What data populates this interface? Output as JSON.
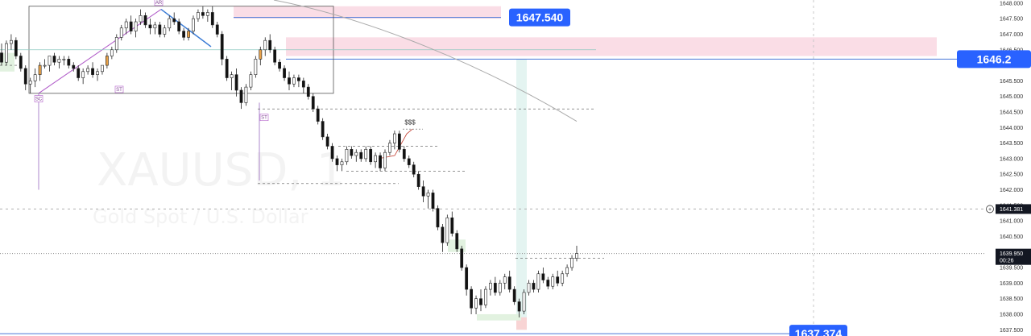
{
  "chart_data": {
    "type": "candlestick",
    "symbol": "XAUUSD, 1",
    "description": "Gold Spot / U.S. Dollar",
    "ylim": [
      1637.3,
      1648.1
    ],
    "y_ticks": [
      "1648.000",
      "1647.500",
      "1647.000",
      "1646.500",
      "1646.000",
      "1645.500",
      "1645.000",
      "1644.500",
      "1644.000",
      "1643.500",
      "1643.000",
      "1642.500",
      "1642.000",
      "1641.500",
      "1641.000",
      "1640.500",
      "1640.000",
      "1639.500",
      "1639.000",
      "1638.500",
      "1638.000",
      "1637.500"
    ],
    "price_tags": [
      {
        "value": 1647.54,
        "text": "1647.540"
      },
      {
        "value": 1646.2,
        "text": "1646.2"
      },
      {
        "value": 1637.374,
        "text": "1637.374"
      }
    ],
    "axis_badges": [
      {
        "value": 1641.381,
        "text": "1641.381"
      },
      {
        "value": 1639.95,
        "text": "1639.950",
        "countdown": "00:26"
      }
    ],
    "annotations": {
      "wyckoff_labels": [
        "AR",
        "SC",
        "ST",
        "ST"
      ],
      "liquidity_label": "$$$"
    },
    "series": [
      {
        "name": "",
        "values": [
          [
            1646.4,
            1646.7,
            1646.0,
            1646.1
          ],
          [
            1646.1,
            1646.8,
            1646.0,
            1646.7
          ],
          [
            1646.7,
            1647.0,
            1646.5,
            1646.8
          ],
          [
            1646.8,
            1646.9,
            1646.2,
            1646.3
          ],
          [
            1646.3,
            1646.4,
            1645.8,
            1645.9
          ],
          [
            1645.9,
            1646.0,
            1645.2,
            1645.4
          ],
          [
            1645.4,
            1645.6,
            1645.1,
            1645.5
          ],
          [
            1645.5,
            1645.9,
            1645.3,
            1645.7
          ],
          [
            1645.7,
            1646.1,
            1645.5,
            1646.0
          ],
          [
            1646.0,
            1646.2,
            1645.9,
            1646.0
          ],
          [
            1646.0,
            1646.3,
            1645.8,
            1646.3
          ],
          [
            1646.3,
            1646.4,
            1646.0,
            1646.1
          ],
          [
            1646.1,
            1646.3,
            1645.9,
            1646.2
          ],
          [
            1646.2,
            1646.3,
            1646.0,
            1646.2
          ],
          [
            1646.2,
            1646.3,
            1645.9,
            1646.0
          ],
          [
            1646.0,
            1646.1,
            1645.8,
            1645.9
          ],
          [
            1645.9,
            1646.0,
            1645.5,
            1645.6
          ],
          [
            1645.6,
            1645.9,
            1645.4,
            1645.8
          ],
          [
            1645.8,
            1646.0,
            1645.7,
            1645.9
          ],
          [
            1645.9,
            1646.1,
            1645.6,
            1645.7
          ],
          [
            1645.7,
            1645.9,
            1645.5,
            1645.8
          ],
          [
            1645.8,
            1646.0,
            1645.7,
            1646.0
          ],
          [
            1646.0,
            1646.4,
            1645.9,
            1646.3
          ],
          [
            1646.3,
            1646.6,
            1646.2,
            1646.5
          ],
          [
            1646.5,
            1647.0,
            1646.4,
            1646.9
          ],
          [
            1646.9,
            1647.3,
            1646.8,
            1647.2
          ],
          [
            1647.2,
            1647.5,
            1647.0,
            1647.4
          ],
          [
            1647.4,
            1647.6,
            1647.0,
            1647.1
          ],
          [
            1647.1,
            1647.5,
            1646.9,
            1647.4
          ],
          [
            1647.4,
            1647.8,
            1647.3,
            1647.6
          ],
          [
            1647.6,
            1647.7,
            1647.2,
            1647.3
          ],
          [
            1647.3,
            1647.5,
            1647.0,
            1647.2
          ],
          [
            1647.2,
            1647.4,
            1647.0,
            1647.3
          ],
          [
            1647.3,
            1647.4,
            1646.9,
            1647.0
          ],
          [
            1647.0,
            1647.3,
            1646.9,
            1647.2
          ],
          [
            1647.2,
            1647.6,
            1647.1,
            1647.5
          ],
          [
            1647.5,
            1647.7,
            1647.3,
            1647.4
          ],
          [
            1647.4,
            1647.5,
            1647.0,
            1647.1
          ],
          [
            1647.1,
            1647.2,
            1646.8,
            1646.9
          ],
          [
            1646.9,
            1647.2,
            1646.8,
            1647.1
          ],
          [
            1647.1,
            1647.6,
            1647.0,
            1647.5
          ],
          [
            1647.5,
            1647.8,
            1647.4,
            1647.7
          ],
          [
            1647.7,
            1647.9,
            1647.5,
            1647.6
          ],
          [
            1647.6,
            1647.8,
            1647.4,
            1647.7
          ],
          [
            1647.7,
            1647.9,
            1647.2,
            1647.3
          ],
          [
            1647.3,
            1647.4,
            1646.9,
            1647.0
          ],
          [
            1647.0,
            1647.1,
            1646.0,
            1646.2
          ],
          [
            1646.2,
            1646.3,
            1645.5,
            1645.6
          ],
          [
            1645.6,
            1645.8,
            1645.2,
            1645.7
          ],
          [
            1645.7,
            1645.9,
            1645.0,
            1645.2
          ],
          [
            1645.2,
            1645.3,
            1644.6,
            1644.8
          ],
          [
            1644.8,
            1645.4,
            1644.7,
            1645.3
          ],
          [
            1645.3,
            1645.8,
            1645.2,
            1645.7
          ],
          [
            1645.7,
            1646.3,
            1645.6,
            1646.2
          ],
          [
            1646.2,
            1646.6,
            1646.0,
            1646.5
          ],
          [
            1646.5,
            1646.9,
            1646.3,
            1646.8
          ],
          [
            1646.8,
            1647.0,
            1646.4,
            1646.5
          ],
          [
            1646.5,
            1646.6,
            1646.0,
            1646.1
          ],
          [
            1646.1,
            1646.2,
            1645.8,
            1645.9
          ],
          [
            1645.9,
            1646.0,
            1645.5,
            1645.6
          ],
          [
            1645.6,
            1645.8,
            1645.2,
            1645.4
          ],
          [
            1645.4,
            1645.7,
            1645.3,
            1645.6
          ],
          [
            1645.6,
            1645.7,
            1645.3,
            1645.5
          ],
          [
            1645.5,
            1645.6,
            1645.1,
            1645.3
          ],
          [
            1645.3,
            1645.4,
            1644.9,
            1645.0
          ],
          [
            1645.0,
            1645.1,
            1644.5,
            1644.6
          ],
          [
            1644.6,
            1644.7,
            1644.1,
            1644.2
          ],
          [
            1644.2,
            1644.3,
            1643.6,
            1643.7
          ],
          [
            1643.7,
            1643.8,
            1643.3,
            1643.4
          ],
          [
            1643.4,
            1643.5,
            1642.9,
            1643.0
          ],
          [
            1643.0,
            1643.1,
            1642.6,
            1642.8
          ],
          [
            1642.8,
            1643.0,
            1642.6,
            1642.9
          ],
          [
            1642.9,
            1643.4,
            1642.8,
            1643.3
          ],
          [
            1643.3,
            1643.4,
            1643.0,
            1643.1
          ],
          [
            1643.1,
            1643.3,
            1642.9,
            1643.2
          ],
          [
            1643.2,
            1643.3,
            1642.9,
            1643.0
          ],
          [
            1643.0,
            1643.4,
            1642.9,
            1643.3
          ],
          [
            1643.3,
            1643.4,
            1642.8,
            1642.9
          ],
          [
            1642.9,
            1643.2,
            1642.7,
            1643.1
          ],
          [
            1643.1,
            1643.2,
            1642.6,
            1642.7
          ],
          [
            1642.7,
            1643.3,
            1642.6,
            1643.2
          ],
          [
            1643.2,
            1643.6,
            1643.1,
            1643.5
          ],
          [
            1643.5,
            1643.9,
            1643.3,
            1643.8
          ],
          [
            1643.8,
            1643.9,
            1643.2,
            1643.3
          ],
          [
            1643.3,
            1643.4,
            1642.9,
            1643.0
          ],
          [
            1643.0,
            1643.1,
            1642.7,
            1642.8
          ],
          [
            1642.8,
            1642.9,
            1642.4,
            1642.5
          ],
          [
            1642.5,
            1642.6,
            1642.0,
            1642.1
          ],
          [
            1642.1,
            1642.3,
            1641.6,
            1641.8
          ],
          [
            1641.8,
            1642.0,
            1641.4,
            1641.9
          ],
          [
            1641.9,
            1642.0,
            1641.3,
            1641.4
          ],
          [
            1641.4,
            1641.5,
            1640.7,
            1640.8
          ],
          [
            1640.8,
            1640.9,
            1640.0,
            1640.3
          ],
          [
            1640.3,
            1641.2,
            1640.2,
            1641.1
          ],
          [
            1641.1,
            1641.3,
            1640.5,
            1640.6
          ],
          [
            1640.6,
            1640.7,
            1640.0,
            1640.1
          ],
          [
            1640.1,
            1640.2,
            1639.4,
            1639.5
          ],
          [
            1639.5,
            1639.6,
            1638.6,
            1638.8
          ],
          [
            1638.8,
            1638.9,
            1638.0,
            1638.2
          ],
          [
            1638.2,
            1638.6,
            1638.0,
            1638.5
          ],
          [
            1638.5,
            1638.8,
            1638.1,
            1638.3
          ],
          [
            1638.3,
            1638.9,
            1638.2,
            1638.8
          ],
          [
            1638.8,
            1639.1,
            1638.6,
            1639.0
          ],
          [
            1639.0,
            1639.2,
            1638.6,
            1638.7
          ],
          [
            1638.7,
            1639.1,
            1638.6,
            1639.0
          ],
          [
            1639.0,
            1639.3,
            1638.8,
            1639.2
          ],
          [
            1639.2,
            1639.4,
            1638.7,
            1638.8
          ],
          [
            1638.8,
            1638.9,
            1638.3,
            1638.4
          ],
          [
            1638.4,
            1638.5,
            1637.9,
            1638.1
          ],
          [
            1638.1,
            1638.8,
            1638.0,
            1638.7
          ],
          [
            1638.7,
            1639.1,
            1638.6,
            1639.0
          ],
          [
            1639.0,
            1639.1,
            1638.7,
            1638.8
          ],
          [
            1638.8,
            1639.4,
            1638.7,
            1639.3
          ],
          [
            1639.3,
            1639.5,
            1639.0,
            1639.1
          ],
          [
            1639.1,
            1639.2,
            1638.8,
            1638.9
          ],
          [
            1638.9,
            1639.3,
            1638.8,
            1639.2
          ],
          [
            1639.2,
            1639.4,
            1638.9,
            1639.0
          ],
          [
            1639.0,
            1639.4,
            1638.9,
            1639.3
          ],
          [
            1639.3,
            1639.6,
            1639.2,
            1639.5
          ],
          [
            1639.5,
            1639.9,
            1639.4,
            1639.8
          ],
          [
            1639.8,
            1640.2,
            1639.7,
            1639.95
          ]
        ]
      }
    ]
  }
}
